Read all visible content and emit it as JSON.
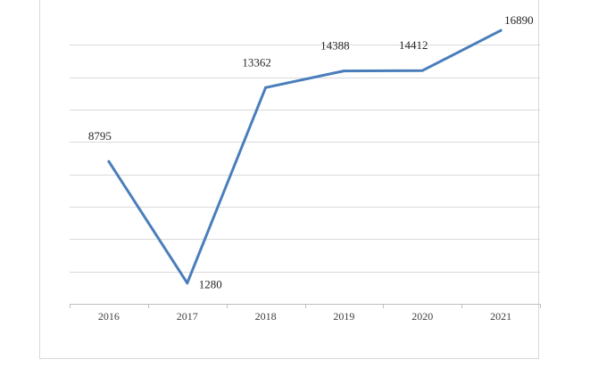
{
  "chart_data": {
    "type": "line",
    "title": "",
    "xlabel": "",
    "ylabel": "",
    "categories": [
      "2016",
      "2017",
      "2018",
      "2019",
      "2020",
      "2021"
    ],
    "series": [
      {
        "values": [
          8795,
          1280,
          13362,
          14388,
          14412,
          16890
        ],
        "color": "#4a7ebb"
      }
    ],
    "ylim": [
      0,
      18000
    ],
    "y_gridlines": [
      2000,
      4000,
      6000,
      8000,
      10000,
      12000,
      14000,
      16000
    ],
    "y_axis_labels_shown": false,
    "data_labels": true,
    "grid": true,
    "legend": "none"
  }
}
